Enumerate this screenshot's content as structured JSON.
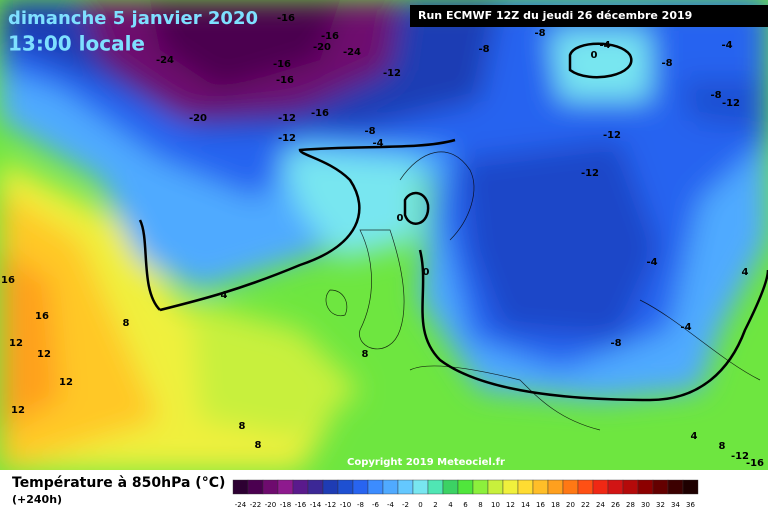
{
  "header": {
    "date": "dimanche 5 janvier 2020",
    "time": "13:00 locale",
    "run": "Run ECMWF 12Z du jeudi 26 décembre 2019"
  },
  "copyright": "Copyright 2019 Meteociel.fr",
  "contour_labels": [
    -16,
    -16,
    -20,
    -24,
    -16,
    -16,
    -24,
    -12,
    -8,
    -8,
    -4,
    0,
    -8,
    -4,
    -8,
    -12,
    -20,
    -12,
    -16,
    -12,
    -8,
    -4,
    -12,
    -12,
    0,
    0,
    4,
    8,
    16,
    16,
    12,
    12,
    12,
    12,
    8,
    8,
    8,
    -4,
    4,
    -4,
    -8,
    4,
    8,
    -12,
    -16
  ],
  "legend": {
    "title": "Température à 850hPa (°C)",
    "subtitle": "(+240h)",
    "scale": [
      {
        "value": -24,
        "color": "#2d0032"
      },
      {
        "value": -22,
        "color": "#4b0050"
      },
      {
        "value": -20,
        "color": "#6e0b6e"
      },
      {
        "value": -18,
        "color": "#8e1a8e"
      },
      {
        "value": -16,
        "color": "#5a1a8c"
      },
      {
        "value": -14,
        "color": "#3c2896"
      },
      {
        "value": -12,
        "color": "#1e3cb4"
      },
      {
        "value": -10,
        "color": "#1e50d2"
      },
      {
        "value": -8,
        "color": "#2864f0"
      },
      {
        "value": -6,
        "color": "#3c8cff"
      },
      {
        "value": -4,
        "color": "#50aaff"
      },
      {
        "value": -2,
        "color": "#64c8ff"
      },
      {
        "value": 0,
        "color": "#78e6f0"
      },
      {
        "value": 2,
        "color": "#50e6b4"
      },
      {
        "value": 4,
        "color": "#3cd264"
      },
      {
        "value": 6,
        "color": "#50e63c"
      },
      {
        "value": 8,
        "color": "#8cf03c"
      },
      {
        "value": 10,
        "color": "#c8f03c"
      },
      {
        "value": 12,
        "color": "#f0f03c"
      },
      {
        "value": 14,
        "color": "#ffdc32"
      },
      {
        "value": 16,
        "color": "#ffbe28"
      },
      {
        "value": 18,
        "color": "#ffa01e"
      },
      {
        "value": 20,
        "color": "#ff7814"
      },
      {
        "value": 22,
        "color": "#ff5014"
      },
      {
        "value": 24,
        "color": "#f02814"
      },
      {
        "value": 26,
        "color": "#d21414"
      },
      {
        "value": 28,
        "color": "#b40a0a"
      },
      {
        "value": 30,
        "color": "#8c0000"
      },
      {
        "value": 32,
        "color": "#640000"
      },
      {
        "value": 34,
        "color": "#3c0000"
      },
      {
        "value": 36,
        "color": "#1e0000"
      }
    ]
  }
}
